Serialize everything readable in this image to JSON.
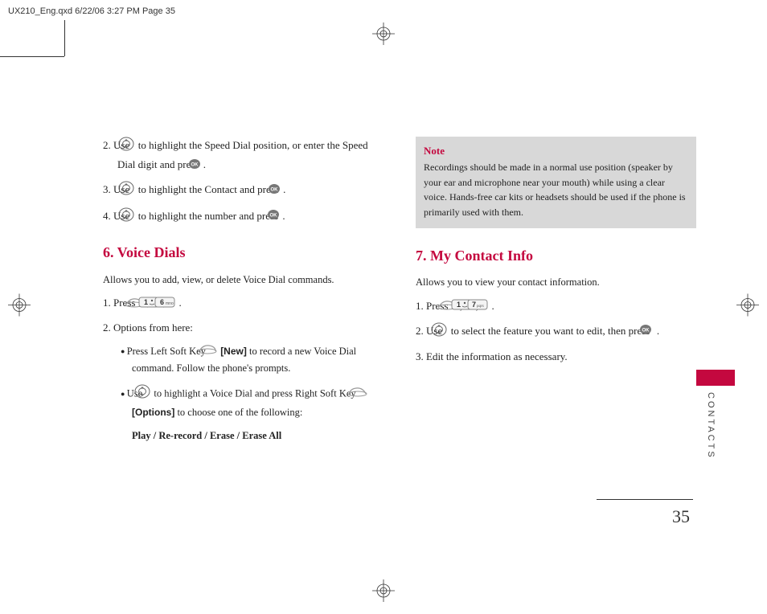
{
  "print_header": "UX210_Eng.qxd  6/22/06  3:27 PM  Page 35",
  "left_col": {
    "steps_top": [
      {
        "num": "2.",
        "pre": "Use ",
        "icon": "nav",
        "mid": " to highlight the Speed Dial position, or enter the Speed Dial digit and press ",
        "icon2": "ok",
        "post": "."
      },
      {
        "num": "3.",
        "pre": "Use ",
        "icon": "nav",
        "mid": " to highlight the Contact and press ",
        "icon2": "ok",
        "post": "."
      },
      {
        "num": "4.",
        "pre": "Use ",
        "icon": "nav",
        "mid": " to highlight the number and press ",
        "icon2": "ok",
        "post": "."
      }
    ],
    "heading": "6. Voice Dials",
    "subtitle": "Allows you to add, view, or delete Voice Dial commands.",
    "step1": "1. Press ",
    "step1_keys": [
      "softkey",
      "key1",
      "key6"
    ],
    "step2_label": "2. Options from here:",
    "bullet1_a": "Press Left Soft Key ",
    "bullet1_bracket": "[New]",
    "bullet1_b": " to record a new Voice Dial command. Follow the phone's prompts.",
    "bullet2_a": "Use ",
    "bullet2_b": " to highlight a Voice Dial and press Right Soft Key ",
    "bullet2_bracket": "[Options]",
    "bullet2_c": " to choose one of the following:",
    "options": "Play / Re-record / Erase / Erase All"
  },
  "right_col": {
    "note_title": "Note",
    "note_body": "Recordings should be made in a normal use position (speaker by your ear and microphone near your mouth) while using a clear voice. Hands-free car kits or headsets should be used if the phone is primarily used with them.",
    "heading": "7. My Contact Info",
    "subtitle": "Allows you to view your contact information.",
    "step1": "1. Press ",
    "step1_keys": [
      "softkey",
      "key1",
      "key7"
    ],
    "step2_a": "2. Use ",
    "step2_b": " to select the feature you want to edit, then press ",
    "step3": "3. Edit the information as necessary."
  },
  "side_label": "CONTACTS",
  "page_number": "35",
  "colors": {
    "accent": "#c4083f",
    "note_bg": "#d8d8d8",
    "text": "#222"
  }
}
